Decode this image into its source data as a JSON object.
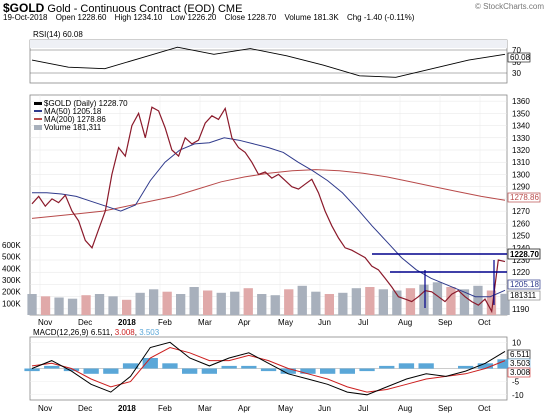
{
  "header": {
    "symbol": "$GOLD",
    "name": "Gold - Continuous Contract (EOD)",
    "exchange": "CME",
    "date": "19-Oct-2018",
    "credit": "© StockCharts.com",
    "quote": {
      "open_label": "Open",
      "open": "1228.60",
      "high_label": "High",
      "high": "1234.10",
      "low_label": "Low",
      "low": "1226.20",
      "close_label": "Close",
      "close": "1228.70",
      "volume_label": "Volume",
      "volume": "181.3K",
      "chg_label": "Chg",
      "chg": "-1.40 (-0.11%)"
    }
  },
  "rsi_panel": {
    "label": "RSI(14) 60.08",
    "ticks": [
      "70",
      "50",
      "30"
    ],
    "value_tag": "60.08"
  },
  "price_panel": {
    "legend": {
      "symbol": "$GOLD (Daily) 1228.70",
      "ma50": "MA(50) 1205.18",
      "ma200": "MA(200) 1278.86",
      "volume": "Volume 181,311"
    },
    "price_ticks": [
      "1360",
      "1350",
      "1340",
      "1330",
      "1320",
      "1310",
      "1300",
      "1290",
      "1280",
      "1270",
      "1260",
      "1250",
      "1240",
      "1230",
      "1220",
      "1210",
      "1200",
      "1190"
    ],
    "volume_ticks": [
      "600K",
      "500K",
      "400K",
      "300K",
      "200K",
      "100K"
    ],
    "tags": {
      "close": "1228.70",
      "ma200": "1278.86",
      "ma50": "1205.18",
      "volume": "181311"
    }
  },
  "macd_panel": {
    "label_prefix": "MACD(12,26,9)",
    "macd": "6.511",
    "signal": "3.008",
    "hist": "3.503",
    "ticks": [
      "10",
      "5",
      "0",
      "-5",
      "-10"
    ],
    "tags": [
      "6.511",
      "3.503",
      "3.008"
    ]
  },
  "x_axis": {
    "labels": [
      "Nov",
      "Dec",
      "2018",
      "Feb",
      "Mar",
      "Apr",
      "May",
      "Jun",
      "Jul",
      "Aug",
      "Sep",
      "Oct"
    ]
  },
  "colors": {
    "price": "#8b1a2b",
    "ma50": "#2f3a8c",
    "ma200": "#b84a4a",
    "volume_up": "#a8b0bc",
    "volume_down": "#e0a9a9",
    "resistance": "#00008b",
    "macd": "#000000",
    "macd_signal": "#cc1f1f",
    "macd_hist": "#5aa7d8"
  },
  "chart_data": [
    {
      "type": "line",
      "title": "RSI(14) 60.08",
      "x": [
        "2018-10-02",
        "2018-11-01",
        "2018-12-01",
        "2018-12-31",
        "2018-01-31",
        "2018-03-02",
        "2018-04-01",
        "2018-05-01",
        "2018-06-01",
        "2018-07-01",
        "2018-08-01",
        "2018-09-01",
        "2018-10-01",
        "2018-10-19"
      ],
      "ylim": [
        20,
        80
      ],
      "series": [
        {
          "name": "RSI(14)",
          "values": [
            52,
            42,
            40,
            55,
            70,
            60,
            68,
            58,
            45,
            30,
            28,
            40,
            52,
            60.08
          ]
        }
      ]
    },
    {
      "type": "line",
      "title": "$GOLD (Daily) 1228.70",
      "x_labels": [
        "Nov",
        "Dec",
        "2018",
        "Feb",
        "Mar",
        "Apr",
        "May",
        "Jun",
        "Jul",
        "Aug",
        "Sep",
        "Oct"
      ],
      "ylim": [
        1185,
        1365
      ],
      "series": [
        {
          "name": "$GOLD (Daily)",
          "values": [
            1276,
            1282,
            1274,
            1280,
            1277,
            1283,
            1270,
            1262,
            1246,
            1240,
            1255,
            1270,
            1300,
            1322,
            1315,
            1340,
            1350,
            1330,
            1355,
            1352,
            1338,
            1320,
            1315,
            1330,
            1325,
            1328,
            1342,
            1348,
            1345,
            1354,
            1330,
            1322,
            1318,
            1310,
            1300,
            1302,
            1297,
            1300,
            1295,
            1290,
            1288,
            1292,
            1296,
            1285,
            1270,
            1258,
            1248,
            1240,
            1238,
            1235,
            1232,
            1225,
            1222,
            1215,
            1208,
            1200,
            1198,
            1196,
            1200,
            1205,
            1204,
            1200,
            1196,
            1202,
            1205,
            1200,
            1196,
            1193,
            1198,
            1188,
            1230,
            1228.7
          ]
        },
        {
          "name": "MA(50)",
          "values": [
            1285,
            1285,
            1284,
            1282,
            1278,
            1274,
            1270,
            1275,
            1295,
            1310,
            1320,
            1325,
            1326,
            1330,
            1328,
            1325,
            1322,
            1318,
            1310,
            1303,
            1295,
            1285,
            1272,
            1258,
            1245,
            1232,
            1222,
            1215,
            1210,
            1205,
            1200,
            1200,
            1205.18
          ]
        },
        {
          "name": "MA(200)",
          "values": [
            1264,
            1266,
            1268,
            1270,
            1274,
            1278,
            1282,
            1288,
            1294,
            1298,
            1301,
            1303,
            1304,
            1303,
            1301,
            1298,
            1294,
            1290,
            1286,
            1282,
            1278.86
          ]
        }
      ]
    },
    {
      "type": "bar",
      "title": "Volume 181,311",
      "ylim": [
        0,
        600000
      ],
      "series": [
        {
          "name": "Volume",
          "values": [
            180000,
            160000,
            150000,
            140000,
            170000,
            180000,
            160000,
            130000,
            190000,
            220000,
            200000,
            180000,
            240000,
            210000,
            190000,
            200000,
            230000,
            180000,
            170000,
            220000,
            250000,
            200000,
            180000,
            190000,
            230000,
            240000,
            220000,
            210000,
            230000,
            260000,
            280000,
            240000,
            220000,
            250000,
            210000,
            181311
          ]
        }
      ]
    },
    {
      "type": "line",
      "title": "MACD(12,26,9) 6.511, 3.008, 3.503",
      "ylim": [
        -12,
        12
      ],
      "series": [
        {
          "name": "MACD",
          "values": [
            0,
            3,
            -1,
            -6,
            -9,
            -3,
            8,
            10,
            4,
            1,
            4,
            6,
            2,
            -2,
            -4,
            -6,
            -9,
            -10,
            -7,
            -4,
            -2,
            -3,
            -1,
            2,
            6.511
          ]
        },
        {
          "name": "Signal",
          "values": [
            1,
            2,
            0,
            -4,
            -7,
            -5,
            4,
            8,
            6,
            3,
            3,
            5,
            3,
            0,
            -2,
            -4,
            -7,
            -9,
            -8,
            -6,
            -4,
            -3,
            -2,
            0,
            3.008
          ]
        },
        {
          "name": "Histogram",
          "values": [
            -1,
            1,
            -1,
            -2,
            -2,
            2,
            4,
            2,
            -2,
            -2,
            1,
            1,
            -1,
            -2,
            -2,
            -2,
            -2,
            -1,
            1,
            2,
            2,
            0,
            1,
            2,
            3.503
          ]
        }
      ]
    }
  ]
}
